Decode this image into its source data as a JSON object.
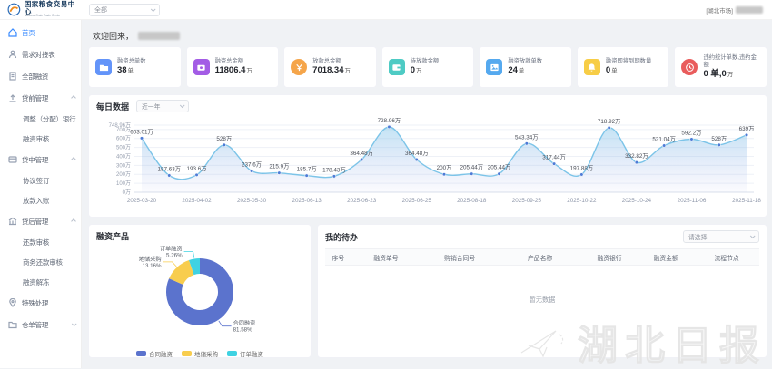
{
  "header": {
    "brand_cn": "国家粮食交易中心",
    "brand_en": "National Grain Trade Center",
    "market_filter": "全部",
    "top_right_market": "[湖北市场]"
  },
  "sidebar": {
    "items": [
      {
        "label": "首页"
      },
      {
        "label": "需求对接表"
      },
      {
        "label": "全部融资"
      },
      {
        "label": "贷前管理"
      },
      {
        "label": "调整（分配）银行"
      },
      {
        "label": "融资审核"
      },
      {
        "label": "贷中管理"
      },
      {
        "label": "协议签订"
      },
      {
        "label": "放款入账"
      },
      {
        "label": "贷后管理"
      },
      {
        "label": "还款审核"
      },
      {
        "label": "商务还款审核"
      },
      {
        "label": "融资解冻"
      },
      {
        "label": "特殊处理"
      },
      {
        "label": "仓单管理"
      }
    ]
  },
  "welcome": {
    "text": "欢迎回来，"
  },
  "stats": [
    {
      "label": "融资总单数",
      "value": "38",
      "unit": "单",
      "color": "#6394f9",
      "shape": "square"
    },
    {
      "label": "融资总金额",
      "value": "11806.4",
      "unit": "万",
      "color": "#a35ce5",
      "shape": "square"
    },
    {
      "label": "放款总金额",
      "value": "7018.34",
      "unit": "万",
      "color": "#f5a54a",
      "shape": "circle"
    },
    {
      "label": "待放款金额",
      "value": "0",
      "unit": "万",
      "color": "#4ecbc4",
      "shape": "square"
    },
    {
      "label": "融资放款单数",
      "value": "24",
      "unit": "单",
      "color": "#55a9ef",
      "shape": "square"
    },
    {
      "label": "融资即将到期数量",
      "value": "0",
      "unit": "单",
      "color": "#f7cd46",
      "shape": "square"
    },
    {
      "label": "违约统计单数,违约金额",
      "value": "0 单,0",
      "unit": "万",
      "color": "#e95c5c",
      "shape": "circle"
    }
  ],
  "chart_data": [
    {
      "type": "area",
      "title": "每日数据",
      "range_filter": "近一年",
      "line_color": "#7cc4e8",
      "dot_color": "#4d7bd6",
      "y_max": 748.96,
      "y_ticks": [
        {
          "v": 0,
          "label": "0万"
        },
        {
          "v": 100,
          "label": "100万"
        },
        {
          "v": 200,
          "label": "200万"
        },
        {
          "v": 300,
          "label": "300万"
        },
        {
          "v": 400,
          "label": "400万"
        },
        {
          "v": 500,
          "label": "500万"
        },
        {
          "v": 600,
          "label": "600万"
        },
        {
          "v": 700,
          "label": "700万"
        },
        {
          "v": 748.96,
          "label": "748.96万"
        }
      ],
      "values": [
        603.01,
        187.63,
        193.6,
        528,
        237.6,
        215.9,
        185.7,
        178.43,
        364.48,
        728.96,
        364.48,
        200,
        205.44,
        205.44,
        543.34,
        317.44,
        197.88,
        718.92,
        332.82,
        521.04,
        592.2,
        528,
        639
      ],
      "point_labels": [
        "603.01万",
        "187.63万",
        "193.6万",
        "528万",
        "237.6万",
        "215.9万",
        "185.7万",
        "178.43万",
        "364.48万",
        "728.96万",
        "364.48万",
        "200万",
        "205.44万",
        "205.44万",
        "543.34万",
        "317.44万",
        "197.88万",
        "718.92万",
        "332.82万",
        "521.04万",
        "592.2万",
        "528万",
        "639万"
      ],
      "x_labels": [
        "2025-03-20",
        "2025-04-02",
        "2025-05-30",
        "2025-06-13",
        "2025-06-23",
        "2025-06-25",
        "2025-08-18",
        "2025-09-25",
        "2025-10-22",
        "2025-10-24",
        "2025-11-06",
        "2025-11-18"
      ],
      "x_label_every": 2
    },
    {
      "type": "pie",
      "title": "融资产品",
      "donut": true,
      "slices": [
        {
          "name": "合同融资",
          "value": 81.58,
          "pct_label": "81.58%",
          "color": "#5b73cd"
        },
        {
          "name": "地储采购",
          "value": 13.16,
          "pct_label": "13.16%",
          "color": "#f8cd4e"
        },
        {
          "name": "订单融资",
          "value": 5.26,
          "pct_label": "5.26%",
          "color": "#3fd2e2"
        }
      ],
      "legend": [
        "合同融资",
        "地储采购",
        "订单融资"
      ]
    }
  ],
  "todo": {
    "title": "我的待办",
    "filter_placeholder": "请选择",
    "columns": [
      "序号",
      "融资单号",
      "购销合同号",
      "产品名称",
      "融资银行",
      "融资金额",
      "流程节点"
    ],
    "empty_text": "暂无数据"
  },
  "watermark": {
    "text": "湖北日报"
  }
}
